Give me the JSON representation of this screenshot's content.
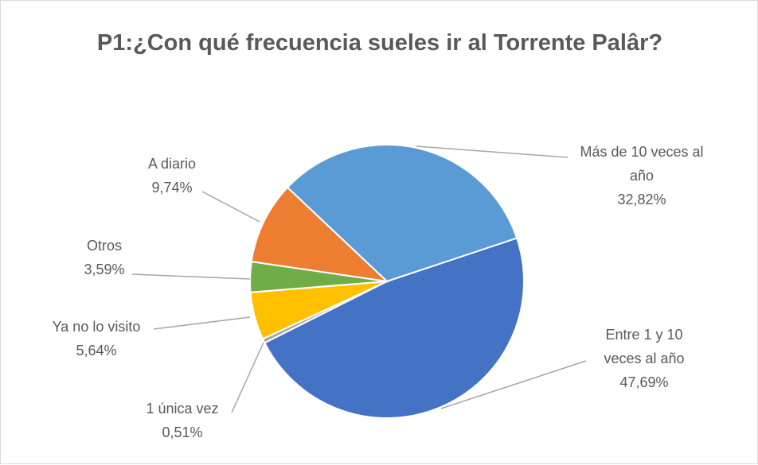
{
  "chart_data": {
    "type": "pie",
    "title": "P1:¿Con qué frecuencia sueles ir al Torrente Palâr?",
    "categories": [
      "Más de 10 veces al año",
      "Entre 1 y 10 veces al año",
      "1 única vez",
      "Ya no lo visito",
      "Otros",
      "A diario"
    ],
    "values": [
      32.82,
      47.69,
      0.51,
      5.64,
      3.59,
      9.74
    ],
    "value_labels": [
      "32,82%",
      "47,69%",
      "0,51%",
      "5,64%",
      "3,59%",
      "9,74%"
    ],
    "colors": [
      "#5b9bd5",
      "#4472c4",
      "#a5a5a5",
      "#ffc000",
      "#70ad47",
      "#ed7d31"
    ]
  }
}
